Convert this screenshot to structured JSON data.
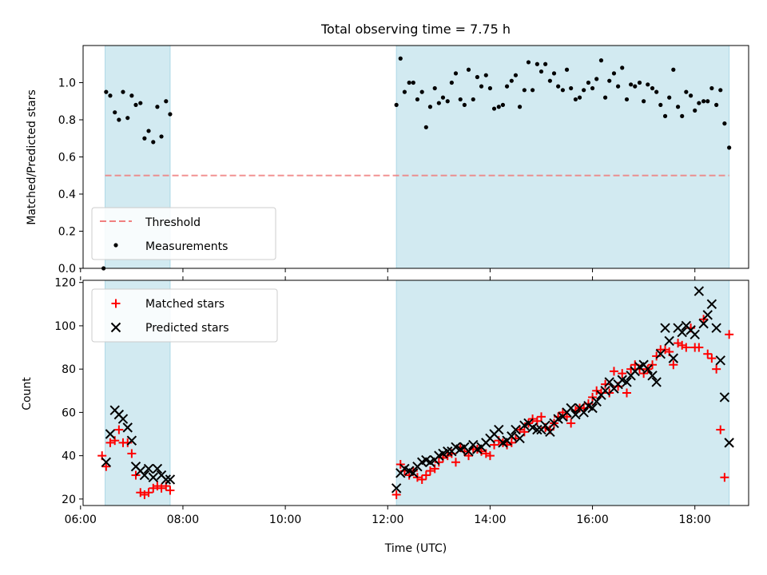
{
  "chart_data": [
    {
      "type": "scatter",
      "title": "Total observing time = 7.75 h",
      "xlabel": "",
      "ylabel": "Matched/Predicted stars",
      "xlim": [
        "06:00",
        "19:00"
      ],
      "ylim": [
        0,
        1.2
      ],
      "yticks": [
        0.0,
        0.2,
        0.4,
        0.6,
        0.8,
        1.0
      ],
      "ytick_labels": [
        "0.0",
        "0.2",
        "0.4",
        "0.6",
        "0.8",
        "1.0"
      ],
      "x_unit": "hours UTC",
      "shaded_intervals": [
        [
          6.48,
          7.75
        ],
        [
          12.17,
          18.67
        ]
      ],
      "shade_color": "#add8e6",
      "threshold": {
        "name": "Threshold",
        "value": 0.5,
        "x_range": [
          6.48,
          18.67
        ],
        "color": "#f08080",
        "style": "dashed"
      },
      "legend": {
        "location": "lower left",
        "entries": [
          "Threshold",
          "Measurements"
        ]
      },
      "series": [
        {
          "name": "Measurements",
          "color": "#000000",
          "marker": "dot",
          "x": [
            6.45,
            6.5,
            6.58,
            6.67,
            6.75,
            6.83,
            6.92,
            7.0,
            7.08,
            7.17,
            7.25,
            7.33,
            7.42,
            7.5,
            7.58,
            7.67,
            7.75,
            12.17,
            12.25,
            12.33,
            12.42,
            12.5,
            12.58,
            12.67,
            12.75,
            12.83,
            12.92,
            13.0,
            13.08,
            13.17,
            13.25,
            13.33,
            13.42,
            13.5,
            13.58,
            13.67,
            13.75,
            13.83,
            13.92,
            14.0,
            14.08,
            14.17,
            14.25,
            14.33,
            14.42,
            14.5,
            14.58,
            14.67,
            14.75,
            14.83,
            14.92,
            15.0,
            15.08,
            15.17,
            15.25,
            15.33,
            15.42,
            15.5,
            15.58,
            15.67,
            15.75,
            15.83,
            15.92,
            16.0,
            16.08,
            16.17,
            16.25,
            16.33,
            16.42,
            16.5,
            16.58,
            16.67,
            16.75,
            16.83,
            16.92,
            17.0,
            17.08,
            17.17,
            17.25,
            17.33,
            17.42,
            17.5,
            17.58,
            17.67,
            17.75,
            17.83,
            17.92,
            18.0,
            18.08,
            18.17,
            18.25,
            18.33,
            18.42,
            18.5,
            18.58,
            18.67
          ],
          "y": [
            0.0,
            0.95,
            0.93,
            0.84,
            0.8,
            0.95,
            0.81,
            0.93,
            0.88,
            0.89,
            0.7,
            0.74,
            0.68,
            0.87,
            0.71,
            0.9,
            0.83,
            0.88,
            1.13,
            0.95,
            1.0,
            1.0,
            0.91,
            0.95,
            0.76,
            0.87,
            0.97,
            0.89,
            0.92,
            0.9,
            1.0,
            1.05,
            0.91,
            0.88,
            1.07,
            0.91,
            1.03,
            0.98,
            1.04,
            0.97,
            0.86,
            0.87,
            0.88,
            0.98,
            1.01,
            1.04,
            0.87,
            0.96,
            1.11,
            0.96,
            1.1,
            1.06,
            1.1,
            1.01,
            1.05,
            0.98,
            0.96,
            1.07,
            0.97,
            0.91,
            0.92,
            0.96,
            1.0,
            0.97,
            1.02,
            1.12,
            0.92,
            1.01,
            1.05,
            0.98,
            1.08,
            0.91,
            0.99,
            0.98,
            1.0,
            0.9,
            0.99,
            0.97,
            0.95,
            0.88,
            0.82,
            0.92,
            1.07,
            0.87,
            0.82,
            0.95,
            0.93,
            0.85,
            0.89,
            0.9,
            0.9,
            0.97,
            0.88,
            0.96,
            0.78,
            0.65
          ]
        }
      ]
    },
    {
      "type": "scatter",
      "title": "",
      "xlabel": "Time (UTC)",
      "ylabel": "Count",
      "xlim": [
        "06:00",
        "19:00"
      ],
      "xticks": [
        "06:00",
        "08:00",
        "10:00",
        "12:00",
        "14:00",
        "16:00",
        "18:00"
      ],
      "ylim": [
        17,
        121
      ],
      "yticks": [
        20,
        40,
        60,
        80,
        100,
        120
      ],
      "ytick_labels": [
        "20",
        "40",
        "60",
        "80",
        "100",
        "120"
      ],
      "x_unit": "hours UTC",
      "shaded_intervals": [
        [
          6.48,
          7.75
        ],
        [
          12.17,
          18.67
        ]
      ],
      "shade_color": "#add8e6",
      "legend": {
        "location": "upper left",
        "entries": [
          "Matched stars",
          "Predicted stars"
        ]
      },
      "series": [
        {
          "name": "Matched stars",
          "color": "#ff0000",
          "marker": "plus",
          "x": [
            6.42,
            6.5,
            6.58,
            6.67,
            6.75,
            6.83,
            6.92,
            7.0,
            7.08,
            7.17,
            7.25,
            7.33,
            7.42,
            7.5,
            7.58,
            7.67,
            7.75,
            12.17,
            12.25,
            12.33,
            12.42,
            12.5,
            12.58,
            12.67,
            12.75,
            12.83,
            12.92,
            13.0,
            13.08,
            13.17,
            13.25,
            13.33,
            13.42,
            13.5,
            13.58,
            13.67,
            13.75,
            13.83,
            13.92,
            14.0,
            14.08,
            14.17,
            14.25,
            14.33,
            14.42,
            14.5,
            14.58,
            14.67,
            14.75,
            14.83,
            14.92,
            15.0,
            15.08,
            15.17,
            15.25,
            15.33,
            15.42,
            15.5,
            15.58,
            15.67,
            15.75,
            15.83,
            15.92,
            16.0,
            16.08,
            16.17,
            16.25,
            16.33,
            16.42,
            16.5,
            16.58,
            16.67,
            16.75,
            16.83,
            16.92,
            17.0,
            17.08,
            17.17,
            17.25,
            17.33,
            17.42,
            17.5,
            17.58,
            17.67,
            17.75,
            17.83,
            17.92,
            18.0,
            18.08,
            18.17,
            18.25,
            18.33,
            18.42,
            18.5,
            18.58,
            18.67
          ],
          "y": [
            40,
            35,
            46,
            47,
            52,
            46,
            46,
            41,
            31,
            23,
            22,
            23,
            25,
            26,
            25,
            26,
            24,
            22,
            36,
            33,
            31,
            33,
            30,
            29,
            31,
            33,
            34,
            37,
            39,
            40,
            41,
            37,
            44,
            42,
            40,
            43,
            43,
            42,
            41,
            40,
            45,
            47,
            46,
            45,
            46,
            48,
            52,
            51,
            55,
            57,
            56,
            58,
            53,
            52,
            55,
            58,
            60,
            58,
            55,
            61,
            62,
            62,
            64,
            67,
            70,
            69,
            73,
            69,
            79,
            72,
            78,
            69,
            80,
            82,
            80,
            78,
            80,
            82,
            86,
            89,
            89,
            88,
            82,
            92,
            91,
            90,
            99,
            90,
            90,
            103,
            87,
            85,
            80,
            52,
            30,
            96
          ]
        },
        {
          "name": "Predicted stars",
          "color": "#000000",
          "marker": "x",
          "x": [
            6.5,
            6.58,
            6.67,
            6.75,
            6.83,
            6.92,
            7.0,
            7.08,
            7.17,
            7.25,
            7.33,
            7.42,
            7.5,
            7.58,
            7.67,
            7.75,
            12.17,
            12.25,
            12.33,
            12.42,
            12.5,
            12.58,
            12.67,
            12.75,
            12.83,
            12.92,
            13.0,
            13.08,
            13.17,
            13.25,
            13.33,
            13.42,
            13.5,
            13.58,
            13.67,
            13.75,
            13.83,
            13.92,
            14.0,
            14.08,
            14.17,
            14.25,
            14.33,
            14.42,
            14.5,
            14.58,
            14.67,
            14.75,
            14.83,
            14.92,
            15.0,
            15.08,
            15.17,
            15.25,
            15.33,
            15.42,
            15.5,
            15.58,
            15.67,
            15.75,
            15.83,
            15.92,
            16.0,
            16.08,
            16.17,
            16.25,
            16.33,
            16.42,
            16.5,
            16.58,
            16.67,
            16.75,
            16.83,
            16.92,
            17.0,
            17.08,
            17.17,
            17.25,
            17.33,
            17.42,
            17.5,
            17.58,
            17.67,
            17.75,
            17.83,
            17.92,
            18.0,
            18.08,
            18.17,
            18.25,
            18.33,
            18.42,
            18.5,
            18.58,
            18.67
          ],
          "y": [
            37,
            50,
            61,
            59,
            57,
            53,
            47,
            35,
            33,
            31,
            34,
            30,
            34,
            31,
            29,
            29,
            25,
            32,
            34,
            33,
            32,
            35,
            37,
            38,
            37,
            38,
            40,
            41,
            42,
            42,
            44,
            43,
            44,
            42,
            45,
            43,
            44,
            46,
            48,
            50,
            52,
            46,
            47,
            49,
            52,
            48,
            54,
            55,
            53,
            52,
            52,
            54,
            51,
            55,
            57,
            58,
            60,
            62,
            59,
            62,
            60,
            63,
            62,
            65,
            68,
            70,
            74,
            71,
            73,
            75,
            74,
            77,
            79,
            81,
            82,
            80,
            77,
            74,
            87,
            99,
            93,
            85,
            99,
            97,
            100,
            98,
            96,
            116,
            101,
            105,
            110,
            99,
            84,
            67,
            46
          ]
        }
      ]
    }
  ]
}
